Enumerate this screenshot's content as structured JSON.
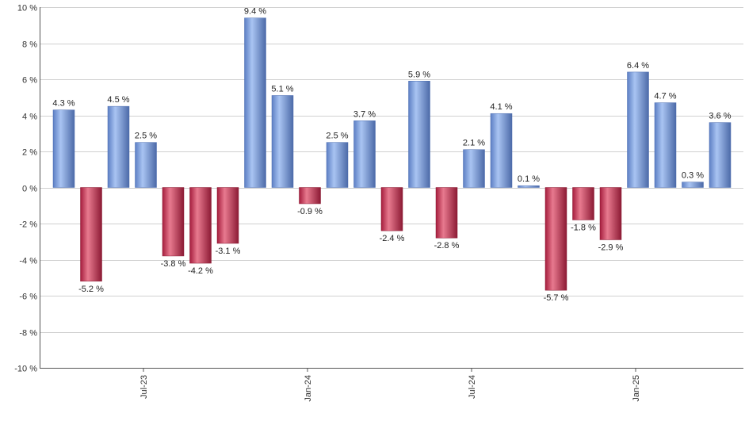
{
  "chart_data": {
    "type": "bar",
    "title": "",
    "xlabel": "",
    "ylabel": "",
    "ylim": [
      -10,
      10
    ],
    "y_ticks": [
      10,
      8,
      6,
      4,
      2,
      0,
      -2,
      -4,
      -6,
      -8,
      -10
    ],
    "y_tick_suffix": " %",
    "grid": true,
    "legend": false,
    "x_tick_labels": [
      {
        "label": "Jul-23",
        "bar_index": 3
      },
      {
        "label": "Jan-24",
        "bar_index": 9
      },
      {
        "label": "Jul-24",
        "bar_index": 15
      },
      {
        "label": "Jan-25",
        "bar_index": 21
      }
    ],
    "values": [
      4.3,
      -5.2,
      4.5,
      2.5,
      -3.8,
      -4.2,
      -3.1,
      9.4,
      5.1,
      -0.9,
      2.5,
      3.7,
      -2.4,
      5.9,
      -2.8,
      2.1,
      4.1,
      0.1,
      -5.7,
      -1.8,
      -2.9,
      6.4,
      4.7,
      0.3,
      3.6
    ],
    "labels": [
      "4.3 %",
      "-5.2 %",
      "4.5 %",
      "2.5 %",
      "-3.8 %",
      "-4.2 %",
      "-3.1 %",
      "9.4 %",
      "5.1 %",
      "-0.9 %",
      "2.5 %",
      "3.7 %",
      "-2.4 %",
      "5.9 %",
      "-2.8 %",
      "2.1 %",
      "4.1 %",
      "0.1 %",
      "-5.7 %",
      "-1.8 %",
      "-2.9 %",
      "6.4 %",
      "4.7 %",
      "0.3 %",
      "3.6 %"
    ],
    "colors": {
      "positive": "#7a9fe0",
      "positive_dark": "#4a6cb0",
      "negative": "#c8304f",
      "negative_dark": "#8a1a33"
    }
  }
}
